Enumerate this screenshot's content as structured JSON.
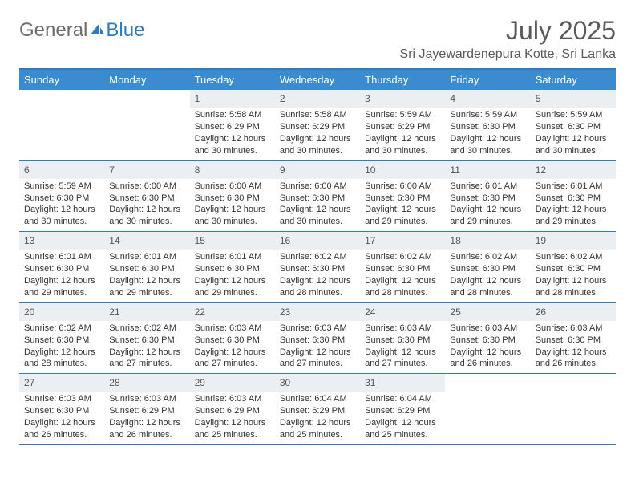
{
  "brand": {
    "part1": "General",
    "part2": "Blue"
  },
  "title": "July 2025",
  "location": "Sri Jayewardenepura Kotte, Sri Lanka",
  "colors": {
    "header_bg": "#3b8bd0",
    "header_text": "#ffffff",
    "border": "#2d7bc0",
    "daynum_bg": "#eceff1",
    "text": "#333333",
    "title_text": "#5a5a5a",
    "logo_gray": "#6b6b6b",
    "logo_blue": "#2d7bc0",
    "page_bg": "#ffffff"
  },
  "typography": {
    "title_fontsize": 32,
    "location_fontsize": 16,
    "weekday_fontsize": 13,
    "daynum_fontsize": 12,
    "cell_fontsize": 11
  },
  "weekdays": [
    "Sunday",
    "Monday",
    "Tuesday",
    "Wednesday",
    "Thursday",
    "Friday",
    "Saturday"
  ],
  "first_weekday_index": 2,
  "days": [
    {
      "n": 1,
      "sunrise": "5:58 AM",
      "sunset": "6:29 PM",
      "daylight": "12 hours and 30 minutes."
    },
    {
      "n": 2,
      "sunrise": "5:58 AM",
      "sunset": "6:29 PM",
      "daylight": "12 hours and 30 minutes."
    },
    {
      "n": 3,
      "sunrise": "5:59 AM",
      "sunset": "6:29 PM",
      "daylight": "12 hours and 30 minutes."
    },
    {
      "n": 4,
      "sunrise": "5:59 AM",
      "sunset": "6:30 PM",
      "daylight": "12 hours and 30 minutes."
    },
    {
      "n": 5,
      "sunrise": "5:59 AM",
      "sunset": "6:30 PM",
      "daylight": "12 hours and 30 minutes."
    },
    {
      "n": 6,
      "sunrise": "5:59 AM",
      "sunset": "6:30 PM",
      "daylight": "12 hours and 30 minutes."
    },
    {
      "n": 7,
      "sunrise": "6:00 AM",
      "sunset": "6:30 PM",
      "daylight": "12 hours and 30 minutes."
    },
    {
      "n": 8,
      "sunrise": "6:00 AM",
      "sunset": "6:30 PM",
      "daylight": "12 hours and 30 minutes."
    },
    {
      "n": 9,
      "sunrise": "6:00 AM",
      "sunset": "6:30 PM",
      "daylight": "12 hours and 30 minutes."
    },
    {
      "n": 10,
      "sunrise": "6:00 AM",
      "sunset": "6:30 PM",
      "daylight": "12 hours and 29 minutes."
    },
    {
      "n": 11,
      "sunrise": "6:01 AM",
      "sunset": "6:30 PM",
      "daylight": "12 hours and 29 minutes."
    },
    {
      "n": 12,
      "sunrise": "6:01 AM",
      "sunset": "6:30 PM",
      "daylight": "12 hours and 29 minutes."
    },
    {
      "n": 13,
      "sunrise": "6:01 AM",
      "sunset": "6:30 PM",
      "daylight": "12 hours and 29 minutes."
    },
    {
      "n": 14,
      "sunrise": "6:01 AM",
      "sunset": "6:30 PM",
      "daylight": "12 hours and 29 minutes."
    },
    {
      "n": 15,
      "sunrise": "6:01 AM",
      "sunset": "6:30 PM",
      "daylight": "12 hours and 29 minutes."
    },
    {
      "n": 16,
      "sunrise": "6:02 AM",
      "sunset": "6:30 PM",
      "daylight": "12 hours and 28 minutes."
    },
    {
      "n": 17,
      "sunrise": "6:02 AM",
      "sunset": "6:30 PM",
      "daylight": "12 hours and 28 minutes."
    },
    {
      "n": 18,
      "sunrise": "6:02 AM",
      "sunset": "6:30 PM",
      "daylight": "12 hours and 28 minutes."
    },
    {
      "n": 19,
      "sunrise": "6:02 AM",
      "sunset": "6:30 PM",
      "daylight": "12 hours and 28 minutes."
    },
    {
      "n": 20,
      "sunrise": "6:02 AM",
      "sunset": "6:30 PM",
      "daylight": "12 hours and 28 minutes."
    },
    {
      "n": 21,
      "sunrise": "6:02 AM",
      "sunset": "6:30 PM",
      "daylight": "12 hours and 27 minutes."
    },
    {
      "n": 22,
      "sunrise": "6:03 AM",
      "sunset": "6:30 PM",
      "daylight": "12 hours and 27 minutes."
    },
    {
      "n": 23,
      "sunrise": "6:03 AM",
      "sunset": "6:30 PM",
      "daylight": "12 hours and 27 minutes."
    },
    {
      "n": 24,
      "sunrise": "6:03 AM",
      "sunset": "6:30 PM",
      "daylight": "12 hours and 27 minutes."
    },
    {
      "n": 25,
      "sunrise": "6:03 AM",
      "sunset": "6:30 PM",
      "daylight": "12 hours and 26 minutes."
    },
    {
      "n": 26,
      "sunrise": "6:03 AM",
      "sunset": "6:30 PM",
      "daylight": "12 hours and 26 minutes."
    },
    {
      "n": 27,
      "sunrise": "6:03 AM",
      "sunset": "6:30 PM",
      "daylight": "12 hours and 26 minutes."
    },
    {
      "n": 28,
      "sunrise": "6:03 AM",
      "sunset": "6:29 PM",
      "daylight": "12 hours and 26 minutes."
    },
    {
      "n": 29,
      "sunrise": "6:03 AM",
      "sunset": "6:29 PM",
      "daylight": "12 hours and 25 minutes."
    },
    {
      "n": 30,
      "sunrise": "6:04 AM",
      "sunset": "6:29 PM",
      "daylight": "12 hours and 25 minutes."
    },
    {
      "n": 31,
      "sunrise": "6:04 AM",
      "sunset": "6:29 PM",
      "daylight": "12 hours and 25 minutes."
    }
  ],
  "labels": {
    "sunrise": "Sunrise:",
    "sunset": "Sunset:",
    "daylight": "Daylight:"
  }
}
